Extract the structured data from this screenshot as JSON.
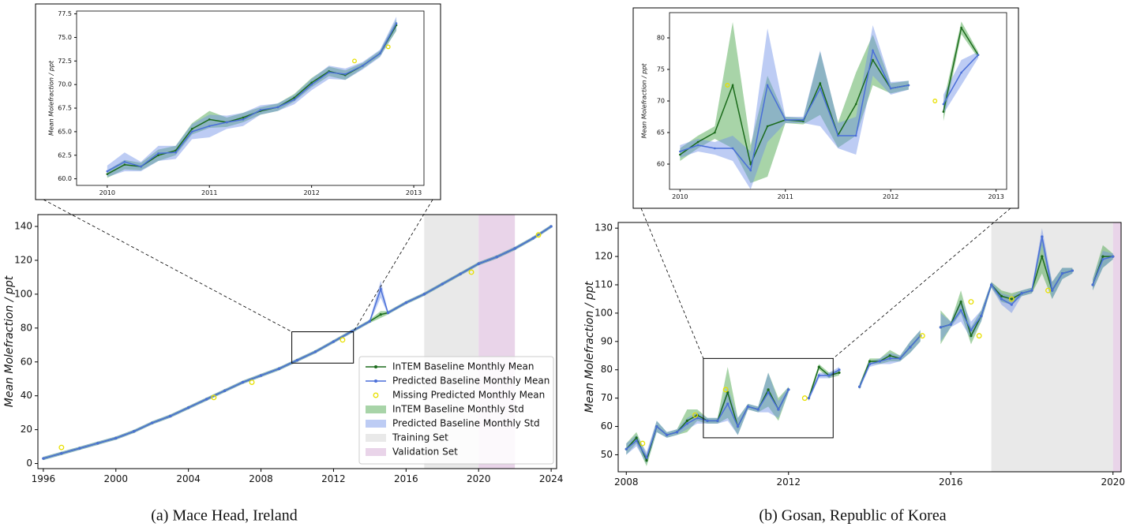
{
  "chart_data": [
    {
      "type": "line",
      "caption": "(a) Mace Head, Ireland",
      "ylabel": "Mean Molefraction / ppt",
      "xlim": [
        1995.7,
        2024.3
      ],
      "ylim": [
        -3,
        147
      ],
      "xticks": [
        1996,
        2000,
        2004,
        2008,
        2012,
        2016,
        2020,
        2024
      ],
      "yticks": [
        0,
        20,
        40,
        60,
        80,
        100,
        120,
        140
      ],
      "legend": "lower right",
      "x": [
        1996,
        1997,
        1998,
        1999,
        2000,
        2001,
        2002,
        2003,
        2004,
        2005,
        2006,
        2007,
        2008,
        2009,
        2010,
        2011,
        2012,
        2013,
        2014,
        2014.6,
        2015,
        2016,
        2017,
        2018,
        2019,
        2020,
        2021,
        2022,
        2023,
        2024
      ],
      "series": [
        {
          "name": "InTEM Baseline Monthly Mean",
          "color": "#1b6b1b",
          "band_color": "#3f9f3f",
          "values": [
            3,
            6,
            9,
            12,
            15,
            19,
            24,
            28,
            33,
            38,
            43,
            48,
            52,
            56,
            61,
            66,
            72,
            78,
            84,
            88,
            89,
            95,
            100,
            106,
            112,
            118,
            122,
            127,
            133,
            140
          ],
          "std": [
            1,
            1,
            1,
            1,
            1,
            1,
            1,
            1,
            1,
            1,
            1,
            1,
            1,
            1,
            1,
            1,
            1,
            1,
            1,
            2,
            1,
            1,
            1,
            1,
            1,
            1,
            1,
            1,
            1,
            1
          ]
        },
        {
          "name": "Predicted Baseline Monthly Mean",
          "color": "#4a6fd8",
          "band_color": "#6d8fe6",
          "values": [
            3,
            6,
            9,
            12,
            15,
            19,
            24,
            28,
            33,
            38,
            43,
            48,
            52,
            56,
            61,
            66,
            72,
            78,
            84,
            103,
            89,
            95,
            100,
            106,
            112,
            118,
            122,
            127,
            133,
            140
          ],
          "std": [
            1,
            1,
            1,
            1,
            1,
            1,
            1,
            1,
            1,
            1,
            1,
            1,
            1,
            1,
            1,
            1,
            1,
            1,
            1,
            5,
            1,
            1,
            1,
            1,
            1,
            1,
            1,
            1,
            1,
            1
          ]
        }
      ],
      "missing": {
        "name": "Missing Predicted Monthly Mean",
        "color": "#e8e000",
        "x": [
          1997,
          2005.4,
          2007.5,
          2012.5,
          2019.6,
          2023.3
        ],
        "values": [
          9.5,
          39,
          48,
          73,
          113,
          135
        ]
      },
      "std_bands": [
        {
          "name": "InTEM Baseline Monthly Std",
          "color": "#3f9f3f"
        },
        {
          "name": "Predicted Baseline Monthly Std",
          "color": "#6d8fe6"
        }
      ],
      "spans": [
        {
          "name": "Training Set",
          "from": 2017,
          "to": 2020,
          "color": "#e4e4e4"
        },
        {
          "name": "Validation Set",
          "from": 2020,
          "to": 2022,
          "color": "#e3c9e3"
        }
      ]
    },
    {
      "type": "line",
      "ylabel": "Mean Molefraction / ppt",
      "xlim": [
        2009.7,
        2013.1
      ],
      "ylim": [
        59.3,
        77.8
      ],
      "xticks": [
        2010,
        2011,
        2012,
        2013
      ],
      "yticks": [
        {
          "value": 60,
          "label": "60.0"
        },
        62.5,
        {
          "value": 65,
          "label": "65.0"
        },
        67.5,
        {
          "value": 70,
          "label": "70.0"
        },
        72.5,
        {
          "value": 75,
          "label": "75.0"
        },
        77.5
      ],
      "x": [
        2010,
        2010.17,
        2010.33,
        2010.5,
        2010.67,
        2010.83,
        2011,
        2011.17,
        2011.33,
        2011.5,
        2011.67,
        2011.83,
        2012,
        2012.17,
        2012.33,
        2012.5,
        2012.67,
        2012.83
      ],
      "series": [
        {
          "color": "#1b6b1b",
          "band_color": "#3f9f3f",
          "values": [
            60.5,
            61.5,
            61.3,
            62.5,
            63.0,
            65.3,
            66.3,
            66.0,
            66.5,
            67.2,
            67.6,
            68.6,
            70.2,
            71.4,
            71.0,
            72.0,
            73.3,
            76.3
          ],
          "std": [
            0.4,
            0.5,
            0.4,
            0.6,
            0.5,
            0.6,
            0.9,
            0.5,
            0.5,
            0.4,
            0.4,
            0.4,
            0.5,
            0.5,
            0.5,
            0.3,
            0.3,
            0.6
          ]
        },
        {
          "color": "#4a6fd8",
          "band_color": "#6d8fe6",
          "values": [
            60.8,
            61.8,
            61.3,
            62.7,
            62.8,
            65.0,
            65.6,
            66.0,
            66.3,
            67.3,
            67.6,
            68.4,
            70.0,
            71.3,
            71.1,
            72.0,
            73.3,
            76.5
          ],
          "std": [
            0.6,
            1.0,
            0.5,
            0.8,
            0.7,
            0.8,
            1.2,
            0.7,
            0.7,
            0.5,
            0.4,
            0.5,
            0.6,
            0.7,
            0.6,
            0.4,
            0.4,
            0.7
          ]
        }
      ],
      "missing": {
        "color": "#e8e000",
        "x": [
          2012.42,
          2012.75
        ],
        "values": [
          72.5,
          74
        ]
      }
    },
    {
      "type": "line",
      "caption": "(b) Gosan, Republic of Korea",
      "ylabel": "Mean Molefraction / ppt",
      "xlim": [
        2007.8,
        2020.2
      ],
      "ylim": [
        44,
        132
      ],
      "xticks": [
        2008,
        2012,
        2016,
        2020
      ],
      "yticks": [
        50,
        60,
        70,
        80,
        90,
        100,
        110,
        120,
        130
      ],
      "x": [
        2008,
        2008.25,
        2008.5,
        2008.75,
        2009,
        2009.25,
        2009.5,
        2009.75,
        2010,
        2010.25,
        2010.5,
        2010.75,
        2011,
        2011.25,
        2011.5,
        2011.75,
        2012,
        2012.25,
        2012.5,
        2012.75,
        2013,
        2013.25,
        2013.5,
        2013.75,
        2014,
        2014.25,
        2014.5,
        2014.75,
        2015,
        2015.25,
        2015.5,
        2015.75,
        2016,
        2016.25,
        2016.5,
        2016.75,
        2017,
        2017.25,
        2017.5,
        2017.75,
        2018,
        2018.25,
        2018.5,
        2018.75,
        2019,
        2019.25,
        2019.5,
        2019.75,
        2020
      ],
      "series": [
        {
          "color": "#1b6b1b",
          "band_color": "#3f9f3f",
          "values": [
            52,
            56,
            48,
            60,
            57,
            58,
            62,
            64,
            62,
            62,
            72,
            60,
            67,
            66,
            73,
            66,
            73,
            null,
            70,
            81,
            78,
            79,
            null,
            74,
            83,
            83,
            85,
            84,
            88,
            92,
            null,
            95,
            96,
            104,
            92,
            99,
            110,
            106,
            105,
            107,
            108,
            120,
            108,
            114,
            115,
            null,
            110,
            120,
            120
          ],
          "std": [
            2,
            2,
            2,
            2,
            1,
            1,
            4,
            2,
            1,
            1,
            9,
            3,
            1,
            1,
            6,
            4,
            1,
            null,
            1,
            1,
            1,
            1,
            null,
            1,
            1,
            1,
            2,
            1,
            2,
            2,
            null,
            6,
            1,
            4,
            3,
            2,
            1,
            2,
            2,
            1,
            1,
            6,
            3,
            2,
            1,
            null,
            2,
            4,
            1
          ]
        },
        {
          "color": "#4a6fd8",
          "band_color": "#6d8fe6",
          "values": [
            52,
            55,
            49,
            60,
            57,
            58,
            61,
            63,
            62,
            62,
            68,
            60,
            67,
            66,
            72,
            66,
            73,
            null,
            70,
            78,
            78,
            80,
            null,
            74,
            82,
            83,
            84,
            84,
            88,
            92,
            null,
            95,
            96,
            101,
            94,
            99,
            110,
            105,
            103,
            107,
            108,
            127,
            108,
            114,
            115,
            null,
            110,
            119,
            120
          ],
          "std": [
            2,
            2,
            2,
            2,
            1,
            1,
            2,
            2,
            1,
            1,
            6,
            3,
            1,
            1,
            7,
            3,
            1,
            null,
            1,
            1,
            1,
            1,
            null,
            1,
            1,
            1,
            2,
            1,
            2,
            2,
            null,
            5,
            1,
            4,
            3,
            2,
            1,
            2,
            3,
            1,
            1,
            3,
            3,
            2,
            1,
            null,
            2,
            3,
            1
          ]
        }
      ],
      "missing": {
        "color": "#e8e000",
        "x": [
          2008.4,
          2009.7,
          2010.45,
          2012.4,
          2015.3,
          2016.5,
          2016.7,
          2017.5,
          2018.4
        ],
        "values": [
          54,
          64,
          73,
          70,
          92,
          104,
          92,
          105,
          108
        ]
      },
      "spans": [
        {
          "from": 2017,
          "to": 2020,
          "color": "#e4e4e4"
        },
        {
          "from": 2020,
          "to": 2020.2,
          "color": "#e3c9e3"
        }
      ]
    },
    {
      "type": "line",
      "ylabel": "Mean Molefraction / ppt",
      "xlim": [
        2009.9,
        2013.1
      ],
      "ylim": [
        56,
        84
      ],
      "xticks": [
        2010,
        2011,
        2012,
        2013
      ],
      "yticks": [
        60,
        65,
        70,
        75,
        80
      ],
      "x": [
        2010,
        2010.17,
        2010.33,
        2010.5,
        2010.67,
        2010.83,
        2011,
        2011.17,
        2011.33,
        2011.5,
        2011.67,
        2011.83,
        2012,
        2012.17,
        2012.33,
        2012.5,
        2012.67,
        2012.83
      ],
      "series": [
        {
          "color": "#1b6b1b",
          "band_color": "#3f9f3f",
          "values": [
            61.5,
            63.5,
            65.0,
            72.5,
            60.0,
            66.0,
            67.0,
            66.8,
            72.8,
            64.6,
            69.5,
            76.5,
            72.0,
            72.5,
            null,
            68.3,
            81.6,
            77.3
          ],
          "std": [
            1,
            1,
            1,
            10,
            3,
            8,
            0.5,
            0.5,
            5,
            2,
            5,
            4,
            0.8,
            0.7,
            null,
            1.5,
            1,
            0.5
          ]
        },
        {
          "color": "#4a6fd8",
          "band_color": "#6d8fe6",
          "values": [
            62.0,
            63.0,
            62.5,
            62.5,
            59.0,
            72.5,
            67.0,
            67.0,
            72.0,
            64.5,
            64.5,
            78.0,
            72.0,
            72.5,
            null,
            69.5,
            74.5,
            77.3
          ],
          "std": [
            1,
            1,
            1,
            2,
            3,
            9,
            0.5,
            0.5,
            6,
            2,
            3,
            4,
            1,
            0.7,
            null,
            1.5,
            2,
            0.5
          ]
        }
      ],
      "missing": {
        "color": "#e8e000",
        "x": [
          2010.45,
          2012.42
        ],
        "values": [
          72.5,
          70
        ]
      }
    }
  ]
}
